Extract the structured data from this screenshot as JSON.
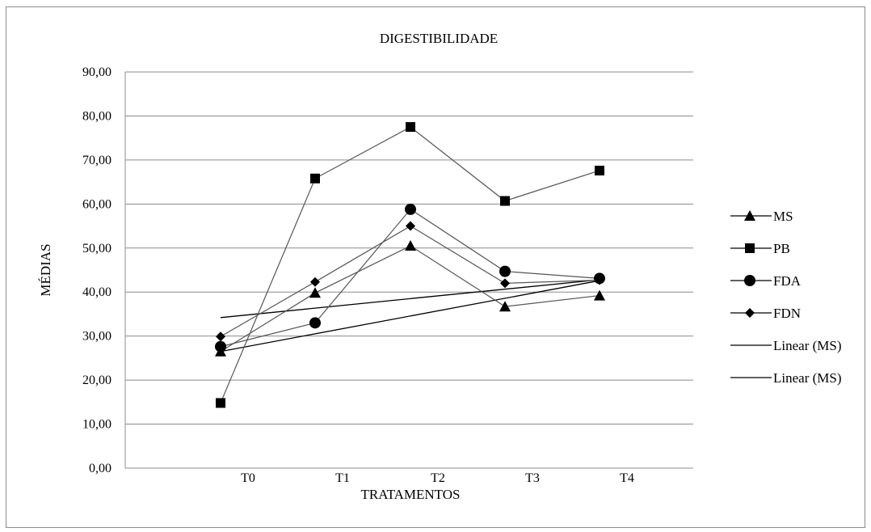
{
  "chart_data": {
    "type": "line",
    "title": "DIGESTIBILIDADE",
    "xlabel": "TRATAMENTOS",
    "ylabel": "MÉDIAS",
    "categories": [
      "T0",
      "T1",
      "T2",
      "T3",
      "T4"
    ],
    "ylim": [
      0,
      90
    ],
    "y_ticks": [
      "0,00",
      "10,00",
      "20,00",
      "30,00",
      "40,00",
      "50,00",
      "60,00",
      "70,00",
      "80,00",
      "90,00"
    ],
    "grid": "horizontal",
    "legend_position": "right",
    "series": [
      {
        "name": "MS",
        "marker": "triangle",
        "values": [
          26.5,
          39.8,
          50.5,
          36.7,
          39.2
        ]
      },
      {
        "name": "PB",
        "marker": "square",
        "values": [
          14.8,
          65.8,
          77.5,
          60.7,
          67.6
        ]
      },
      {
        "name": "FDA",
        "marker": "circle",
        "values": [
          27.6,
          33.0,
          58.8,
          44.7,
          43.1
        ]
      },
      {
        "name": "FDN",
        "marker": "diamond",
        "values": [
          29.9,
          42.3,
          55.0,
          42.0,
          42.7
        ]
      }
    ],
    "trendlines": [
      {
        "name": "Linear (MS)",
        "x": [
          "T0",
          "T4"
        ],
        "values": [
          34.2,
          42.8
        ]
      },
      {
        "name": "Linear (MS)",
        "x": [
          "T0",
          "T4"
        ],
        "values": [
          26.5,
          42.6
        ]
      }
    ],
    "colors": {
      "line": "#555555",
      "marker": "#000000",
      "grid": "#8c8c8c"
    }
  }
}
